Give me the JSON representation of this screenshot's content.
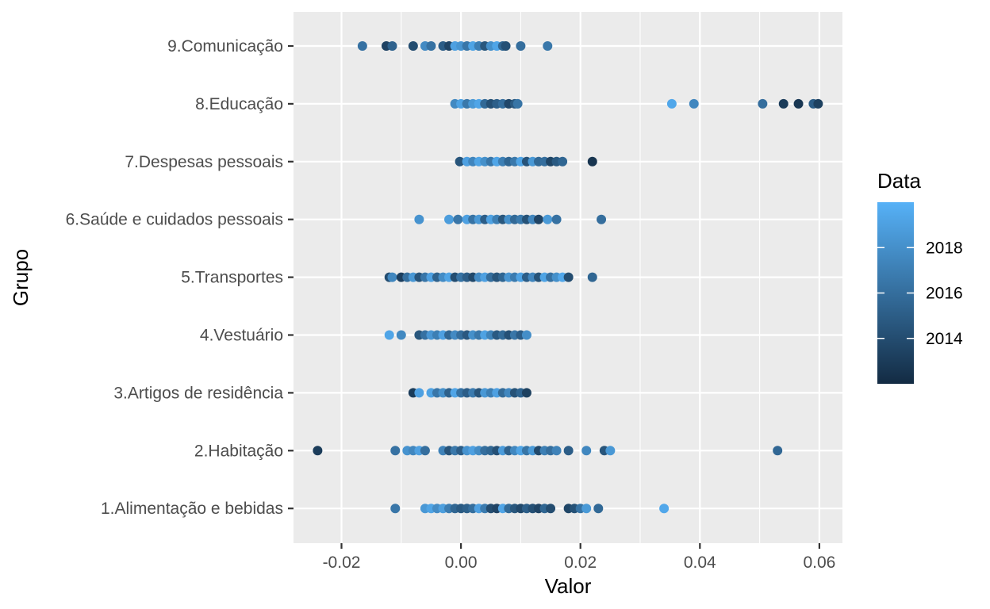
{
  "chart_data": {
    "type": "scatter",
    "xlabel": "Valor",
    "ylabel": "Grupo",
    "xlim": [
      -0.028,
      0.064
    ],
    "x_ticks": [
      -0.02,
      0.0,
      0.02,
      0.04,
      0.06
    ],
    "x_tick_labels": [
      "-0.02",
      "0.00",
      "0.02",
      "0.04",
      "0.06"
    ],
    "categories": [
      "1.Alimentação e bebidas",
      "2.Habitação",
      "3.Artigos de residência",
      "4.Vestuário",
      "5.Transportes",
      "6.Saúde e cuidados pessoais",
      "7.Despesas pessoais",
      "8.Educação",
      "9.Comunicação"
    ],
    "grid": true,
    "legend": {
      "title": "Data",
      "position": "right",
      "scale": "continuous",
      "range": [
        2012,
        2020
      ],
      "ticks": [
        2014,
        2016,
        2018
      ],
      "tick_labels": [
        "2014",
        "2016",
        "2018"
      ],
      "color_low": "#132b43",
      "color_high": "#56b1f7"
    },
    "colors": {
      "panel": "#ebebeb",
      "grid": "#ffffff",
      "low": "#132b43",
      "high": "#56b1f7"
    },
    "series": [
      {
        "category": "1.Alimentação e bebidas",
        "points": [
          [
            -0.011,
            2016.5
          ],
          [
            -0.006,
            2018.5
          ],
          [
            -0.005,
            2019.2
          ],
          [
            -0.004,
            2017.8
          ],
          [
            -0.003,
            2018.9
          ],
          [
            -0.002,
            2016.9
          ],
          [
            -0.001,
            2015.5
          ],
          [
            0.0,
            2014.8
          ],
          [
            0.001,
            2015.2
          ],
          [
            0.002,
            2016.0
          ],
          [
            0.003,
            2019.0
          ],
          [
            0.004,
            2016.8
          ],
          [
            0.005,
            2014.0
          ],
          [
            0.006,
            2013.5
          ],
          [
            0.007,
            2019.3
          ],
          [
            0.008,
            2015.8
          ],
          [
            0.009,
            2014.6
          ],
          [
            0.01,
            2013.8
          ],
          [
            0.011,
            2015.1
          ],
          [
            0.012,
            2014.2
          ],
          [
            0.013,
            2013.5
          ],
          [
            0.014,
            2015.5
          ],
          [
            0.015,
            2014.0
          ],
          [
            0.018,
            2013.6
          ],
          [
            0.019,
            2014.3
          ],
          [
            0.02,
            2016.3
          ],
          [
            0.021,
            2018.6
          ],
          [
            0.023,
            2015.7
          ],
          [
            0.034,
            2019.4
          ]
        ]
      },
      {
        "category": "2.Habitação",
        "points": [
          [
            -0.024,
            2013.0
          ],
          [
            -0.011,
            2016.2
          ],
          [
            -0.009,
            2018.2
          ],
          [
            -0.008,
            2017.5
          ],
          [
            -0.007,
            2019.0
          ],
          [
            -0.006,
            2016.0
          ],
          [
            -0.003,
            2017.2
          ],
          [
            -0.002,
            2014.4
          ],
          [
            -0.001,
            2016.6
          ],
          [
            0.0,
            2015.0
          ],
          [
            0.001,
            2018.2
          ],
          [
            0.002,
            2019.0
          ],
          [
            0.003,
            2017.8
          ],
          [
            0.004,
            2016.0
          ],
          [
            0.005,
            2015.5
          ],
          [
            0.006,
            2014.2
          ],
          [
            0.007,
            2018.7
          ],
          [
            0.008,
            2015.3
          ],
          [
            0.009,
            2017.5
          ],
          [
            0.01,
            2019.2
          ],
          [
            0.011,
            2016.4
          ],
          [
            0.012,
            2018.6
          ],
          [
            0.013,
            2013.8
          ],
          [
            0.014,
            2017.0
          ],
          [
            0.015,
            2016.0
          ],
          [
            0.016,
            2017.2
          ],
          [
            0.018,
            2015.0
          ],
          [
            0.021,
            2017.5
          ],
          [
            0.024,
            2014.5
          ],
          [
            0.025,
            2018.5
          ],
          [
            0.053,
            2015.6
          ]
        ]
      },
      {
        "category": "3.Artigos de residência",
        "points": [
          [
            -0.008,
            2013.0
          ],
          [
            -0.007,
            2019.0
          ],
          [
            -0.005,
            2019.1
          ],
          [
            -0.004,
            2016.5
          ],
          [
            -0.003,
            2018.0
          ],
          [
            -0.002,
            2015.2
          ],
          [
            -0.001,
            2019.3
          ],
          [
            0.0,
            2016.2
          ],
          [
            0.001,
            2015.0
          ],
          [
            0.002,
            2016.8
          ],
          [
            0.003,
            2014.5
          ],
          [
            0.004,
            2018.5
          ],
          [
            0.005,
            2017.0
          ],
          [
            0.006,
            2019.0
          ],
          [
            0.007,
            2015.8
          ],
          [
            0.008,
            2017.5
          ],
          [
            0.009,
            2014.3
          ],
          [
            0.01,
            2015.4
          ],
          [
            0.011,
            2013.3
          ]
        ]
      },
      {
        "category": "4.Vestuário",
        "points": [
          [
            -0.012,
            2019.3
          ],
          [
            -0.01,
            2017.6
          ],
          [
            -0.007,
            2014.6
          ],
          [
            -0.006,
            2016.2
          ],
          [
            -0.005,
            2018.4
          ],
          [
            -0.004,
            2017.0
          ],
          [
            -0.003,
            2019.0
          ],
          [
            -0.002,
            2015.6
          ],
          [
            -0.001,
            2017.7
          ],
          [
            0.0,
            2016.0
          ],
          [
            0.001,
            2014.7
          ],
          [
            0.002,
            2018.0
          ],
          [
            0.003,
            2016.6
          ],
          [
            0.004,
            2019.1
          ],
          [
            0.005,
            2017.3
          ],
          [
            0.006,
            2014.8
          ],
          [
            0.007,
            2015.8
          ],
          [
            0.008,
            2014.2
          ],
          [
            0.009,
            2016.5
          ],
          [
            0.01,
            2015.0
          ],
          [
            0.011,
            2017.9
          ]
        ]
      },
      {
        "category": "5.Transportes",
        "points": [
          [
            -0.012,
            2014.0
          ],
          [
            -0.0115,
            2017.5
          ],
          [
            -0.01,
            2013.2
          ],
          [
            -0.009,
            2016.0
          ],
          [
            -0.008,
            2018.5
          ],
          [
            -0.007,
            2014.5
          ],
          [
            -0.006,
            2016.5
          ],
          [
            -0.005,
            2019.0
          ],
          [
            -0.004,
            2015.3
          ],
          [
            -0.003,
            2017.8
          ],
          [
            -0.002,
            2019.2
          ],
          [
            -0.001,
            2014.0
          ],
          [
            0.0,
            2016.3
          ],
          [
            0.001,
            2015.0
          ],
          [
            0.002,
            2013.8
          ],
          [
            0.003,
            2017.7
          ],
          [
            0.004,
            2019.0
          ],
          [
            0.005,
            2016.0
          ],
          [
            0.006,
            2014.5
          ],
          [
            0.007,
            2015.5
          ],
          [
            0.008,
            2018.3
          ],
          [
            0.009,
            2016.8
          ],
          [
            0.01,
            2019.1
          ],
          [
            0.011,
            2015.0
          ],
          [
            0.012,
            2017.4
          ],
          [
            0.013,
            2014.3
          ],
          [
            0.014,
            2019.2
          ],
          [
            0.015,
            2016.2
          ],
          [
            0.016,
            2018.0
          ],
          [
            0.017,
            2019.4
          ],
          [
            0.018,
            2014.0
          ],
          [
            0.022,
            2015.5
          ]
        ]
      },
      {
        "category": "6.Saúde e cuidados pessoais",
        "points": [
          [
            -0.007,
            2018.2
          ],
          [
            -0.002,
            2018.8
          ],
          [
            -0.0005,
            2016.5
          ],
          [
            0.001,
            2019.0
          ],
          [
            0.002,
            2016.3
          ],
          [
            0.003,
            2018.5
          ],
          [
            0.004,
            2015.0
          ],
          [
            0.005,
            2019.1
          ],
          [
            0.006,
            2017.0
          ],
          [
            0.007,
            2014.6
          ],
          [
            0.008,
            2018.0
          ],
          [
            0.009,
            2015.7
          ],
          [
            0.01,
            2016.7
          ],
          [
            0.011,
            2014.3
          ],
          [
            0.012,
            2017.4
          ],
          [
            0.013,
            2013.5
          ],
          [
            0.0145,
            2018.6
          ],
          [
            0.016,
            2016.2
          ],
          [
            0.0235,
            2016.0
          ]
        ]
      },
      {
        "category": "7.Despesas pessoais",
        "points": [
          [
            -0.0002,
            2014.5
          ],
          [
            0.001,
            2019.0
          ],
          [
            0.002,
            2017.4
          ],
          [
            0.003,
            2019.2
          ],
          [
            0.004,
            2018.0
          ],
          [
            0.005,
            2016.5
          ],
          [
            0.006,
            2019.3
          ],
          [
            0.007,
            2017.0
          ],
          [
            0.008,
            2015.5
          ],
          [
            0.009,
            2016.6
          ],
          [
            0.01,
            2019.2
          ],
          [
            0.011,
            2014.4
          ],
          [
            0.012,
            2018.5
          ],
          [
            0.013,
            2015.7
          ],
          [
            0.014,
            2016.0
          ],
          [
            0.015,
            2013.6
          ],
          [
            0.016,
            2014.8
          ],
          [
            0.017,
            2015.5
          ],
          [
            0.022,
            2012.6
          ]
        ]
      },
      {
        "category": "8.Educação",
        "points": [
          [
            -0.001,
            2017.6
          ],
          [
            0.0,
            2019.1
          ],
          [
            0.001,
            2016.6
          ],
          [
            0.002,
            2018.5
          ],
          [
            0.003,
            2019.3
          ],
          [
            0.004,
            2015.7
          ],
          [
            0.005,
            2014.2
          ],
          [
            0.006,
            2015.1
          ],
          [
            0.007,
            2016.0
          ],
          [
            0.008,
            2013.7
          ],
          [
            0.009,
            2014.8
          ],
          [
            0.0095,
            2016.4
          ],
          [
            0.0353,
            2019.4
          ],
          [
            0.039,
            2017.5
          ],
          [
            0.0505,
            2016.0
          ],
          [
            0.054,
            2013.0
          ],
          [
            0.0565,
            2012.7
          ],
          [
            0.059,
            2015.0
          ],
          [
            0.0598,
            2013.3
          ]
        ]
      },
      {
        "category": "9.Comunicação",
        "points": [
          [
            -0.0165,
            2016.2
          ],
          [
            -0.0125,
            2013.4
          ],
          [
            -0.0115,
            2015.3
          ],
          [
            -0.008,
            2014.0
          ],
          [
            -0.006,
            2017.7
          ],
          [
            -0.005,
            2016.2
          ],
          [
            -0.003,
            2015.0
          ],
          [
            -0.002,
            2013.5
          ],
          [
            -0.001,
            2019.0
          ],
          [
            0.0,
            2018.3
          ],
          [
            0.001,
            2016.5
          ],
          [
            0.002,
            2019.2
          ],
          [
            0.003,
            2017.0
          ],
          [
            0.004,
            2014.6
          ],
          [
            0.005,
            2018.0
          ],
          [
            0.006,
            2019.3
          ],
          [
            0.007,
            2015.6
          ],
          [
            0.0075,
            2014.2
          ],
          [
            0.01,
            2016.0
          ],
          [
            0.0145,
            2016.6
          ]
        ]
      }
    ]
  }
}
